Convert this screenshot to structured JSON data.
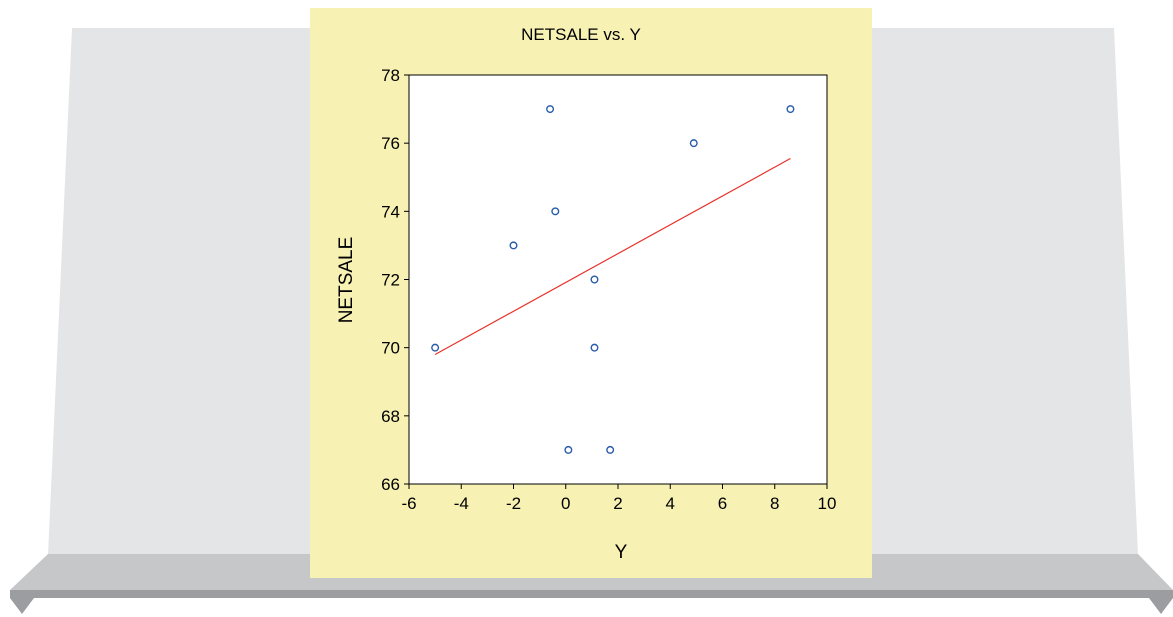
{
  "page": {
    "colors": {
      "backdrop_face": "#e4e5e7",
      "shelf_light": "#c6c7c9",
      "shelf_dark": "#9c9da0",
      "panel": "#f7f1b4",
      "marker": "#2a5caa",
      "fit_line": "#e8322a"
    }
  },
  "chart_data": {
    "type": "scatter",
    "title": "NETSALE vs. Y",
    "xlabel": "Y",
    "ylabel": "NETSALE",
    "xlim": [
      -6,
      10
    ],
    "ylim": [
      66,
      78
    ],
    "xticks": [
      -6,
      -4,
      -2,
      0,
      2,
      4,
      6,
      8,
      10
    ],
    "yticks": [
      66,
      68,
      70,
      72,
      74,
      76,
      78
    ],
    "grid": false,
    "points": [
      {
        "x": -5.0,
        "y": 70
      },
      {
        "x": -2.0,
        "y": 73
      },
      {
        "x": -0.6,
        "y": 77
      },
      {
        "x": -0.4,
        "y": 74
      },
      {
        "x": 0.1,
        "y": 67
      },
      {
        "x": 1.1,
        "y": 72
      },
      {
        "x": 1.1,
        "y": 70
      },
      {
        "x": 1.7,
        "y": 67
      },
      {
        "x": 4.9,
        "y": 76
      },
      {
        "x": 8.6,
        "y": 77
      }
    ],
    "fit_line": [
      {
        "x": -5.0,
        "y": 69.8
      },
      {
        "x": 8.6,
        "y": 75.55
      }
    ]
  }
}
